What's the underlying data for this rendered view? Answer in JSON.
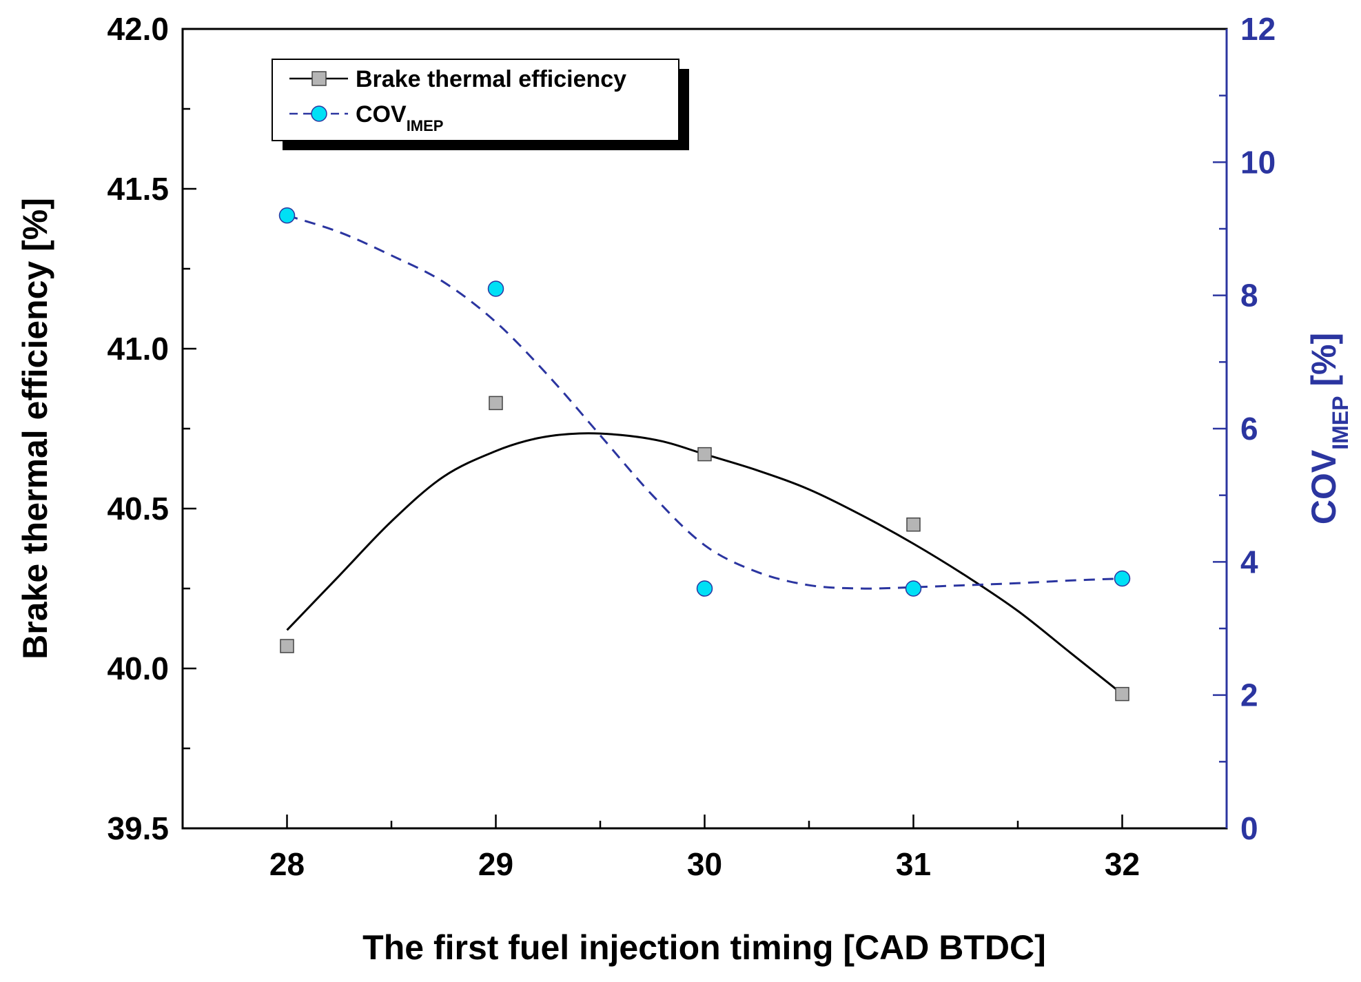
{
  "chart_data": {
    "type": "scatter",
    "title": "",
    "xlabel": "The first fuel injection timing [CAD BTDC]",
    "ylabel_left": "Brake thermal efficiency [%]",
    "ylabel_right_main": "COV",
    "ylabel_right_sub": "IMEP",
    "ylabel_right_unit": " [%]",
    "xlim": [
      27.5,
      32.5
    ],
    "ylim_left": [
      39.5,
      42.0
    ],
    "ylim_right": [
      0,
      12
    ],
    "x_ticks": [
      28,
      29,
      30,
      31,
      32
    ],
    "x_tick_labels": [
      "28",
      "29",
      "30",
      "31",
      "32"
    ],
    "left_ticks": [
      39.5,
      40.0,
      40.5,
      41.0,
      41.5,
      42.0
    ],
    "left_tick_labels": [
      "39.5",
      "40.0",
      "40.5",
      "41.0",
      "41.5",
      "42.0"
    ],
    "right_ticks": [
      0,
      2,
      4,
      6,
      8,
      10,
      12
    ],
    "right_tick_labels": [
      "0",
      "2",
      "4",
      "6",
      "8",
      "10",
      "12"
    ],
    "legend_position": "top-left",
    "series": [
      {
        "name": "Brake thermal efficiency",
        "axis": "left",
        "marker": "square",
        "color": "#000000",
        "marker_fill": "#b5b5b5",
        "line_style": "solid",
        "x": [
          28,
          29,
          30,
          31,
          32
        ],
        "y": [
          40.07,
          40.83,
          40.67,
          40.45,
          39.92
        ],
        "fit_x": [
          28.0,
          28.25,
          28.5,
          28.75,
          29.0,
          29.2,
          29.4,
          29.6,
          29.8,
          30.0,
          30.25,
          30.5,
          30.75,
          31.0,
          31.25,
          31.5,
          31.75,
          32.0
        ],
        "fit_y": [
          40.12,
          40.29,
          40.46,
          40.6,
          40.68,
          40.72,
          40.735,
          40.73,
          40.71,
          40.67,
          40.62,
          40.56,
          40.48,
          40.39,
          40.29,
          40.18,
          40.05,
          39.92
        ]
      },
      {
        "name_main": "COV",
        "name_sub": "IMEP",
        "axis": "right",
        "marker": "circle",
        "color": "#2b35a0",
        "marker_fill": "#00e0f5",
        "line_style": "dashed",
        "x": [
          28,
          29,
          30,
          31,
          32
        ],
        "y": [
          9.2,
          8.1,
          3.6,
          3.6,
          3.75
        ],
        "fit_x": [
          28.0,
          28.25,
          28.5,
          28.75,
          29.0,
          29.25,
          29.5,
          29.75,
          30.0,
          30.25,
          30.5,
          30.75,
          31.0,
          31.25,
          31.5,
          31.75,
          32.0
        ],
        "fit_y": [
          9.2,
          8.95,
          8.6,
          8.2,
          7.6,
          6.8,
          5.9,
          5.0,
          4.25,
          3.85,
          3.65,
          3.6,
          3.62,
          3.65,
          3.68,
          3.72,
          3.75
        ]
      }
    ]
  }
}
